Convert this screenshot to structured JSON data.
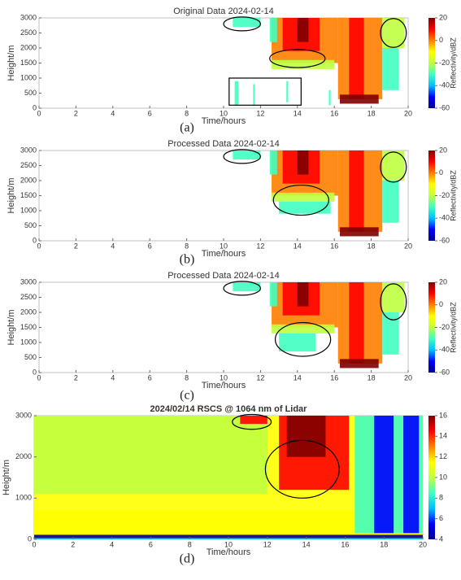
{
  "chart_data": [
    {
      "type": "heatmap",
      "title": "Original Data 2024-02-14",
      "xlabel": "Time/hours",
      "ylabel": "Height/m",
      "panel_label": "(a)",
      "xlim": [
        0,
        20
      ],
      "xticks": [
        0,
        2,
        4,
        6,
        8,
        10,
        12,
        14,
        16,
        18,
        20
      ],
      "ylim": [
        0,
        3000
      ],
      "yticks": [
        0,
        500,
        1000,
        1500,
        2000,
        2500,
        3000
      ],
      "colorbar": {
        "label": "Reflectivity/dBZ",
        "lim": [
          -60,
          20
        ],
        "ticks": [
          -60,
          -40,
          -20,
          0,
          20
        ]
      },
      "colormap": [
        "#00008f",
        "#0000ff",
        "#00bfff",
        "#40ffc0",
        "#c0ff40",
        "#ffff00",
        "#ff8000",
        "#ff0000",
        "#800000"
      ]
    },
    {
      "type": "heatmap",
      "title": "Processed Data 2024-02-14",
      "xlabel": "Time/hours",
      "ylabel": "Height/m",
      "panel_label": "(b)",
      "xlim": [
        0,
        20
      ],
      "xticks": [
        0,
        2,
        4,
        6,
        8,
        10,
        12,
        14,
        16,
        18,
        20
      ],
      "ylim": [
        0,
        3000
      ],
      "yticks": [
        0,
        500,
        1000,
        1500,
        2000,
        2500,
        3000
      ],
      "colorbar": {
        "label": "Reflectivity/dBZ",
        "lim": [
          -60,
          20
        ],
        "ticks": [
          -60,
          -40,
          -20,
          0,
          20
        ]
      },
      "colormap": [
        "#00008f",
        "#0000ff",
        "#00bfff",
        "#40ffc0",
        "#c0ff40",
        "#ffff00",
        "#ff8000",
        "#ff0000",
        "#800000"
      ]
    },
    {
      "type": "heatmap",
      "title": "Processed Data 2024-02-14",
      "xlabel": "Time/hours",
      "ylabel": "Height/m",
      "panel_label": "(c)",
      "xlim": [
        0,
        20
      ],
      "xticks": [
        0,
        2,
        4,
        6,
        8,
        10,
        12,
        14,
        16,
        18,
        20
      ],
      "ylim": [
        0,
        3000
      ],
      "yticks": [
        0,
        500,
        1000,
        1500,
        2000,
        2500,
        3000
      ],
      "colorbar": {
        "label": "Reflectivity/dBZ",
        "lim": [
          -60,
          20
        ],
        "ticks": [
          -60,
          -40,
          -20,
          0,
          20
        ]
      },
      "colormap": [
        "#00008f",
        "#0000ff",
        "#00bfff",
        "#40ffc0",
        "#c0ff40",
        "#ffff00",
        "#ff8000",
        "#ff0000",
        "#800000"
      ]
    },
    {
      "type": "heatmap",
      "title": "2024/02/14 RSCS @ 1064 nm of Lidar",
      "xlabel": "Time/hours",
      "ylabel": "Height/m",
      "panel_label": "(d)",
      "xlim": [
        0,
        20
      ],
      "xticks": [
        0,
        2,
        4,
        6,
        8,
        10,
        12,
        14,
        16,
        18,
        20
      ],
      "ylim": [
        0,
        3000
      ],
      "yticks": [
        0,
        1000,
        2000,
        3000
      ],
      "colorbar": {
        "lim": [
          4,
          16
        ],
        "ticks": [
          4,
          6,
          8,
          10,
          12,
          14,
          16
        ]
      },
      "colormap": [
        "#00008f",
        "#0000ff",
        "#00bfff",
        "#40ffc0",
        "#c0ff40",
        "#ffff00",
        "#ff8000",
        "#ff0000",
        "#800000"
      ]
    }
  ]
}
